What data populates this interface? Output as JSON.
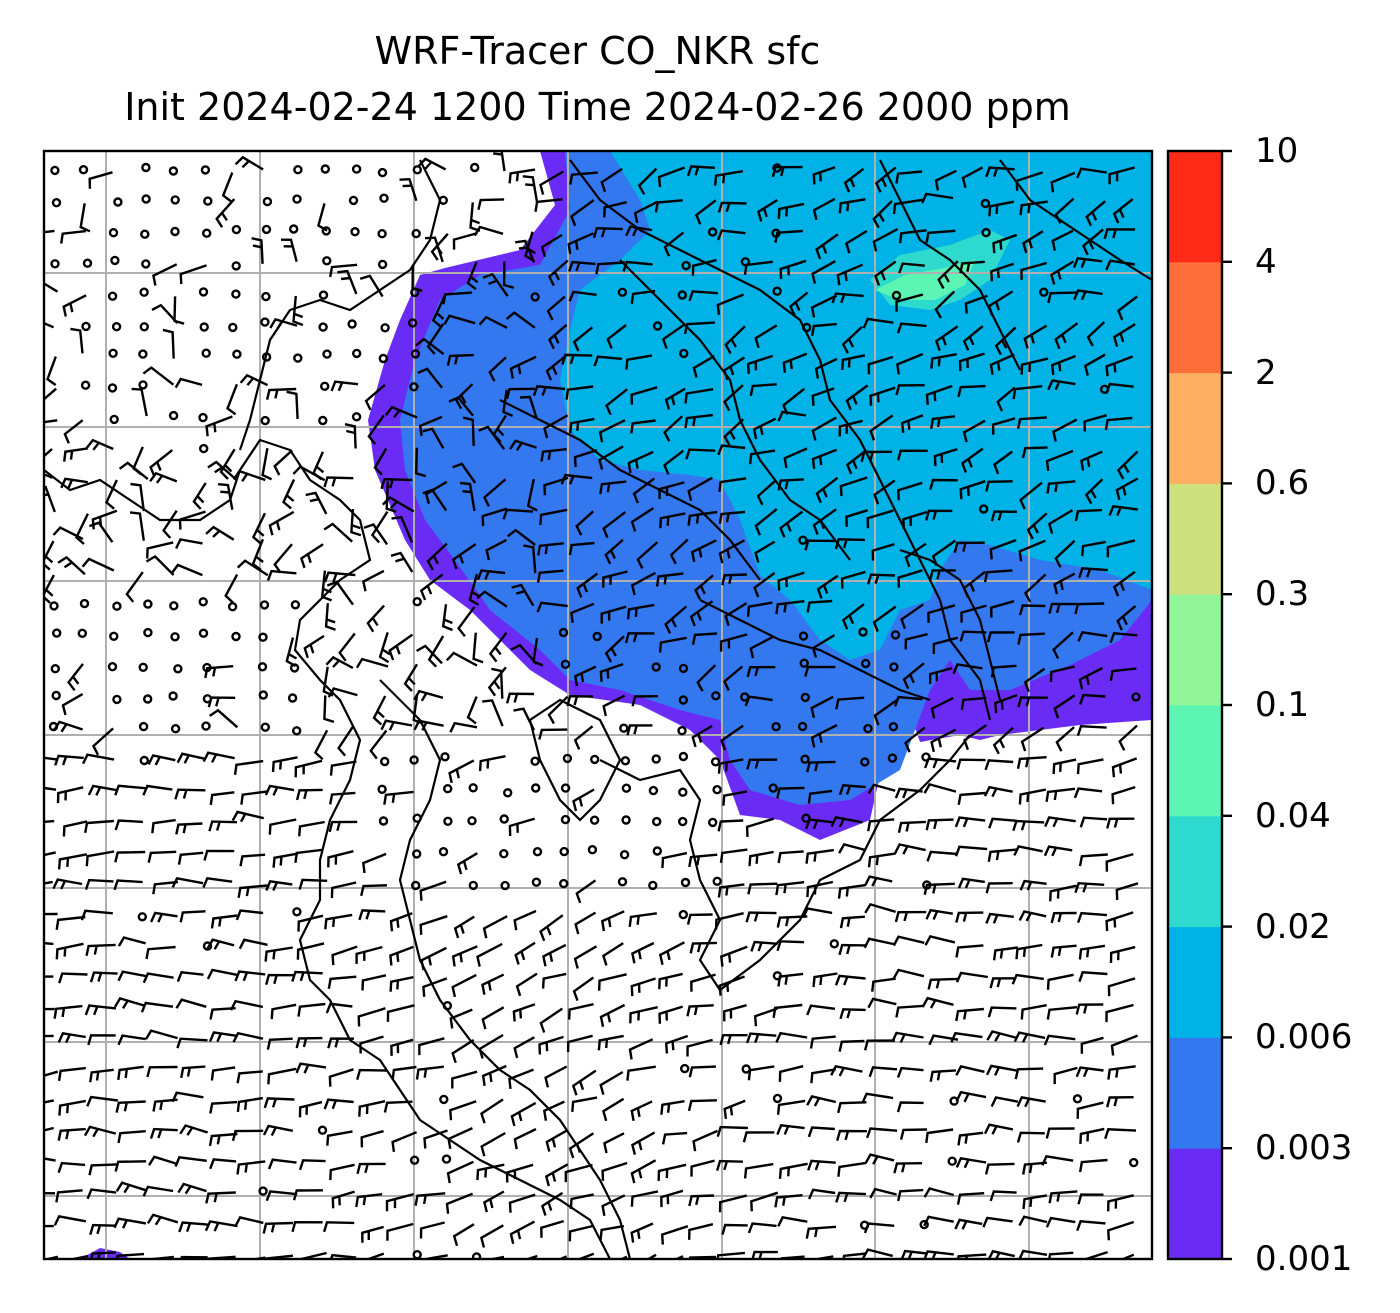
{
  "title_line1": "WRF-Tracer CO_NKR sfc",
  "title_line2": "Init 2024-02-24 1200 Time 2024-02-26 2000 ppm",
  "colorbar": {
    "levels": [
      "0.001",
      "0.003",
      "0.006",
      "0.02",
      "0.04",
      "0.1",
      "0.3",
      "0.6",
      "2",
      "4",
      "10"
    ],
    "colors": [
      "#6a2cf5",
      "#3478f0",
      "#00b2e6",
      "#2ed9cd",
      "#5cf5b4",
      "#93f59a",
      "#cce07e",
      "#fdb061",
      "#fd6e3a",
      "#fc2a16"
    ]
  },
  "map": {
    "field_colors": {
      "lowest": "#6a2cf5",
      "low": "#3478f0",
      "mid": "#00b2e6",
      "high": "#2ed9cd",
      "higher": "#5cf5b4"
    },
    "gridline_color": "#b0b0b0",
    "coastline_color": "#000000",
    "wind_barb_color": "#000000"
  }
}
